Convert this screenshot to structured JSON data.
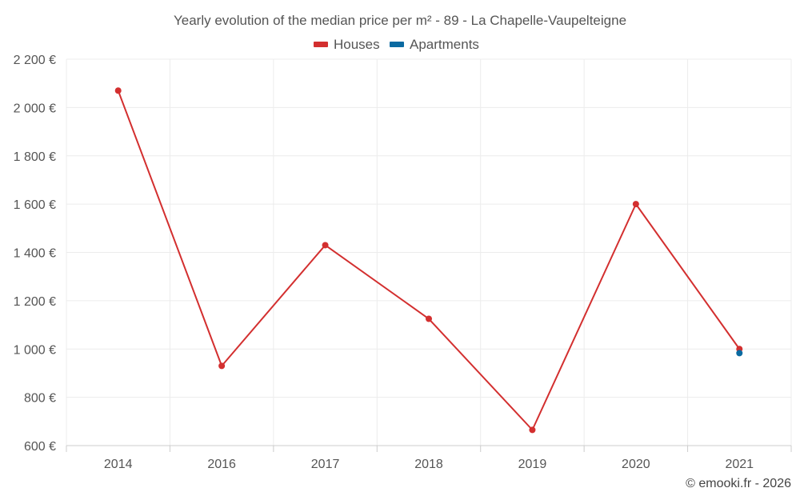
{
  "chart_data": {
    "type": "line",
    "title": "Yearly evolution of the median price per m² - 89 - La Chapelle-Vaupelteigne",
    "categories": [
      "2014",
      "2016",
      "2017",
      "2018",
      "2019",
      "2020",
      "2021"
    ],
    "series": [
      {
        "name": "Houses",
        "color": "#d32f2f",
        "values": [
          2070,
          930,
          1430,
          1125,
          665,
          1600,
          1000
        ]
      },
      {
        "name": "Apartments",
        "color": "#0a6aa1",
        "values": [
          null,
          null,
          null,
          null,
          null,
          null,
          983
        ]
      }
    ],
    "ylim": [
      600,
      2200
    ],
    "yticks": [
      600,
      800,
      1000,
      1200,
      1400,
      1600,
      1800,
      2000,
      2200
    ],
    "ytick_labels": [
      "600 €",
      "800 €",
      "1 000 €",
      "1 200 €",
      "1 400 €",
      "1 600 €",
      "1 800 €",
      "2 000 €",
      "2 200 €"
    ],
    "xlabel": "",
    "ylabel": "",
    "grid": true,
    "legend_position": "top-center",
    "credit": "© emooki.fr - 2026"
  }
}
